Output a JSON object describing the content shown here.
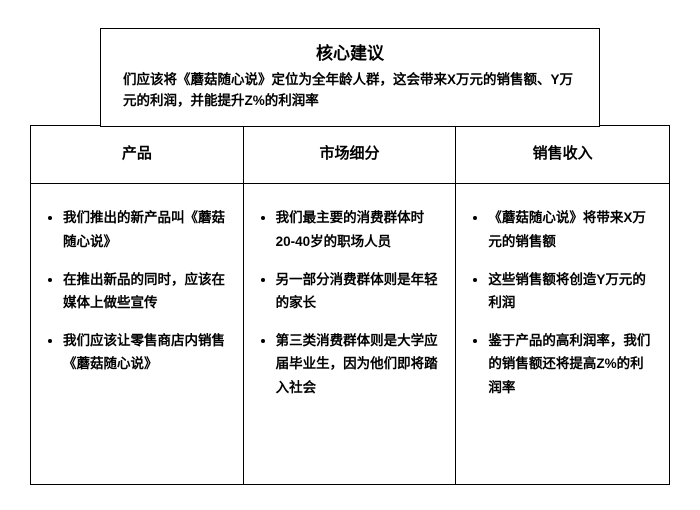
{
  "type": "infographic",
  "layout": {
    "columns": 3,
    "border_color": "#000000",
    "border_width": 1.5,
    "background_color": "#ffffff",
    "text_color": "#000000",
    "title_fontsize": 17,
    "subtitle_fontsize": 13.5,
    "header_fontsize": 15,
    "body_fontsize": 13.5,
    "font_weight": 700,
    "line_height": 1.75
  },
  "top": {
    "title": "核心建议",
    "subtitle": "们应该将《蘑菇随心说》定位为全年龄人群，这会带来X万元的销售额、Y万元的利润，并能提升Z%的利润率"
  },
  "columns": [
    {
      "header": "产品",
      "bullets": [
        "我们推出的新产品叫《蘑菇随心说》",
        "在推出新品的同时，应该在媒体上做些宣传",
        "我们应该让零售商店内销售《蘑菇随心说》"
      ]
    },
    {
      "header": "市场细分",
      "bullets": [
        "我们最主要的消费群体时20-40岁的职场人员",
        "另一部分消费群体则是年轻的家长",
        "第三类消费群体则是大学应届毕业生，因为他们即将踏入社会"
      ]
    },
    {
      "header": "销售收入",
      "bullets": [
        "《蘑菇随心说》将带来X万元的销售额",
        "这些销售额将创造Y万元的利润",
        "鉴于产品的高利润率，我们的销售额还将提高Z%的利润率"
      ]
    }
  ]
}
